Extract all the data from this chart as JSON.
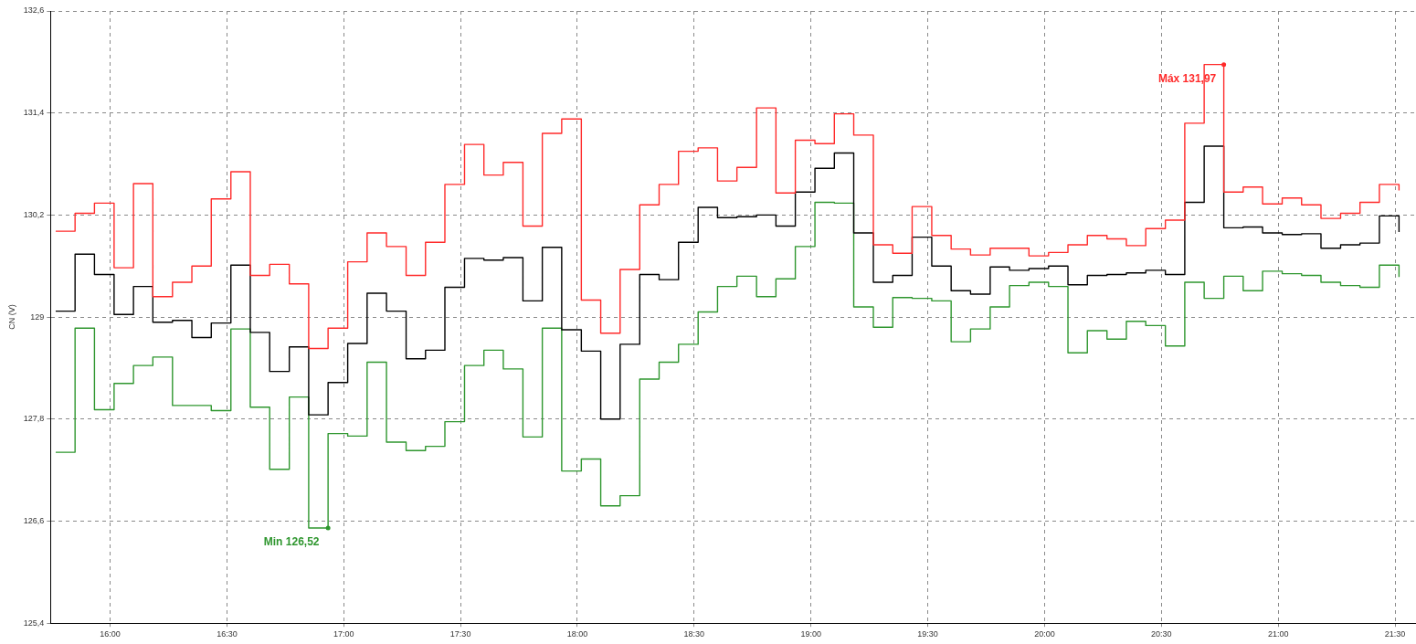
{
  "chart_data": {
    "type": "step",
    "ylabel": "CN (V)",
    "x": [
      15.767,
      15.85,
      15.933,
      16.017,
      16.1,
      16.183,
      16.267,
      16.35,
      16.433,
      16.517,
      16.6,
      16.683,
      16.767,
      16.85,
      16.933,
      17.017,
      17.1,
      17.183,
      17.267,
      17.35,
      17.433,
      17.517,
      17.6,
      17.683,
      17.767,
      17.85,
      17.933,
      18.017,
      18.1,
      18.183,
      18.267,
      18.35,
      18.433,
      18.517,
      18.6,
      18.683,
      18.767,
      18.85,
      18.933,
      19.017,
      19.1,
      19.183,
      19.267,
      19.35,
      19.433,
      19.517,
      19.6,
      19.683,
      19.767,
      19.85,
      19.933,
      20.017,
      20.1,
      20.183,
      20.267,
      20.35,
      20.433,
      20.517,
      20.6,
      20.683,
      20.767,
      20.85,
      20.933,
      21.017,
      21.1,
      21.183,
      21.267,
      21.35,
      21.433,
      21.517
    ],
    "series": [
      {
        "color": "#ff2a2a",
        "values": [
          130.01,
          130.22,
          130.34,
          129.58,
          130.57,
          129.24,
          129.41,
          129.6,
          130.39,
          130.71,
          129.49,
          129.62,
          129.39,
          128.63,
          128.87,
          129.65,
          129.99,
          129.83,
          129.49,
          129.88,
          130.56,
          131.03,
          130.67,
          130.82,
          130.07,
          131.16,
          131.33,
          129.2,
          128.81,
          129.56,
          130.32,
          130.56,
          130.95,
          130.99,
          130.6,
          130.76,
          131.46,
          130.46,
          131.08,
          131.04,
          131.39,
          131.14,
          129.85,
          129.75,
          130.3,
          129.96,
          129.8,
          129.73,
          129.81,
          129.81,
          129.72,
          129.76,
          129.85,
          129.96,
          129.92,
          129.84,
          130.04,
          130.14,
          131.28,
          131.97,
          130.47,
          130.53,
          130.33,
          130.4,
          130.32,
          130.16,
          130.22,
          130.35,
          130.56,
          130.49
        ]
      },
      {
        "color": "#000000",
        "values": [
          129.07,
          129.74,
          129.5,
          129.03,
          129.36,
          128.94,
          128.96,
          128.76,
          128.93,
          129.61,
          128.82,
          128.36,
          128.65,
          127.85,
          128.23,
          128.69,
          129.28,
          129.07,
          128.51,
          128.61,
          129.35,
          129.69,
          129.67,
          129.7,
          129.19,
          129.82,
          128.85,
          128.6,
          127.8,
          128.68,
          129.5,
          129.44,
          129.88,
          130.29,
          130.17,
          130.18,
          130.2,
          130.07,
          130.47,
          130.75,
          130.93,
          129.99,
          129.41,
          129.49,
          129.94,
          129.6,
          129.31,
          129.27,
          129.59,
          129.55,
          129.57,
          129.6,
          129.38,
          129.49,
          129.5,
          129.52,
          129.55,
          129.5,
          130.35,
          131.01,
          130.05,
          130.06,
          129.99,
          129.97,
          129.98,
          129.81,
          129.85,
          129.87,
          130.19,
          130.0
        ]
      },
      {
        "color": "#2e962e",
        "values": [
          127.41,
          128.87,
          127.91,
          128.22,
          128.43,
          128.53,
          127.96,
          127.96,
          127.9,
          128.86,
          127.94,
          127.21,
          128.06,
          126.52,
          127.63,
          127.6,
          128.47,
          127.53,
          127.43,
          127.48,
          127.77,
          128.43,
          128.61,
          128.39,
          127.59,
          128.87,
          127.19,
          127.33,
          126.78,
          126.9,
          128.27,
          128.47,
          128.68,
          129.06,
          129.36,
          129.48,
          129.24,
          129.45,
          129.83,
          130.35,
          130.34,
          129.12,
          128.88,
          129.23,
          129.22,
          129.19,
          128.71,
          128.86,
          129.12,
          129.37,
          129.41,
          129.36,
          128.58,
          128.84,
          128.74,
          128.95,
          128.9,
          128.66,
          129.41,
          129.22,
          129.48,
          129.31,
          129.54,
          129.51,
          129.49,
          129.41,
          129.37,
          129.35,
          129.61,
          129.47
        ]
      }
    ],
    "xlim": [
      15.745,
      21.587
    ],
    "xticks": [
      {
        "value": 16,
        "label": "16:00"
      },
      {
        "value": 16.5,
        "label": "16:30"
      },
      {
        "value": 17,
        "label": "17:00"
      },
      {
        "value": 17.5,
        "label": "17:30"
      },
      {
        "value": 18,
        "label": "18:00"
      },
      {
        "value": 18.5,
        "label": "18:30"
      },
      {
        "value": 19,
        "label": "19:00"
      },
      {
        "value": 19.5,
        "label": "19:30"
      },
      {
        "value": 20,
        "label": "20:00"
      },
      {
        "value": 20.5,
        "label": "20:30"
      },
      {
        "value": 21,
        "label": "21:00"
      },
      {
        "value": 21.5,
        "label": "21:30"
      }
    ],
    "ylim": [
      125.4,
      132.6
    ],
    "yticks": [
      {
        "value": 125.4,
        "label": "125,4"
      },
      {
        "value": 126.6,
        "label": "126,6"
      },
      {
        "value": 127.8,
        "label": "127,8"
      },
      129,
      {
        "value": 130.2,
        "label": "130,2"
      },
      {
        "value": 131.4,
        "label": "131,4"
      },
      {
        "value": 132.6,
        "label": "132,6"
      }
    ],
    "grid": true,
    "legend": false,
    "marker": "none",
    "line_style": "solid",
    "annotations": [
      {
        "text": "Min 126,52",
        "x": 16.933,
        "y": 126.52
      },
      {
        "text": "Máx 131,97",
        "x": 20.767,
        "y": 131.97
      }
    ]
  }
}
